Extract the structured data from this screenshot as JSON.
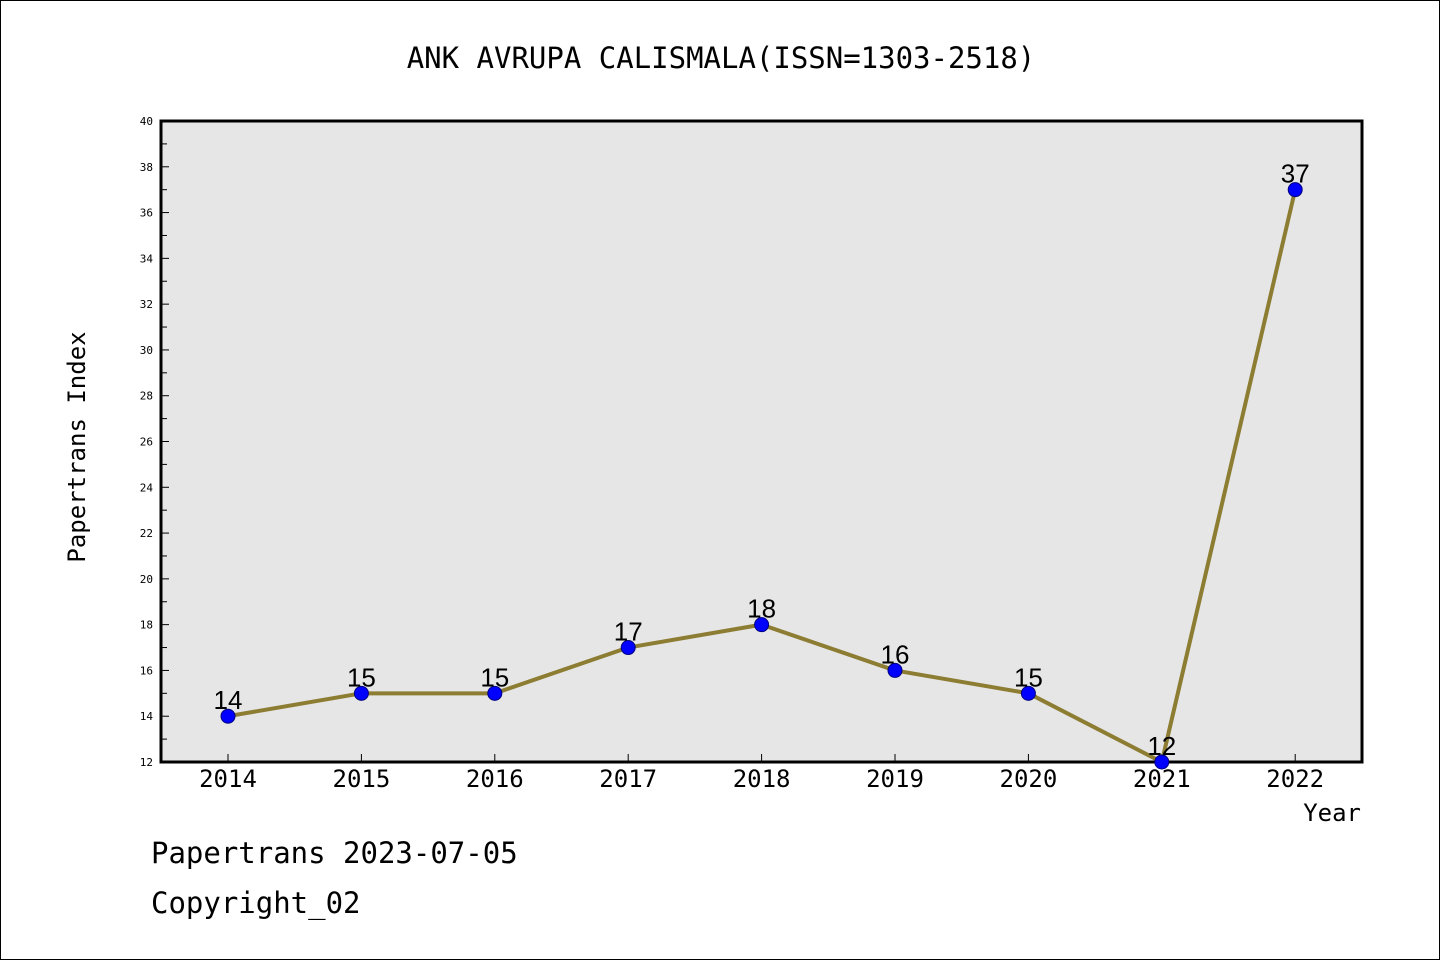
{
  "chart_data": {
    "type": "line",
    "title": "ANK AVRUPA CALISMALA(ISSN=1303-2518)",
    "xlabel": "Year",
    "ylabel": "Papertrans Index",
    "categories": [
      "2014",
      "2015",
      "2016",
      "2017",
      "2018",
      "2019",
      "2020",
      "2021",
      "2022"
    ],
    "series": [
      {
        "values": [
          14,
          15,
          15,
          17,
          18,
          16,
          15,
          12,
          37
        ]
      }
    ],
    "data_labels": [
      "14",
      "15",
      "15",
      "17",
      "18",
      "16",
      "15",
      "12",
      "37"
    ],
    "ylim": [
      12,
      40
    ],
    "yticks": [
      "12",
      "14",
      "16",
      "18",
      "20",
      "22",
      "24",
      "26",
      "28",
      "30",
      "32",
      "34",
      "36",
      "38",
      "40"
    ],
    "grid": false,
    "legend": "none",
    "colors": {
      "line": "#8c7d33",
      "marker_fill": "#0000ff",
      "marker_stroke": "#000080",
      "plot_background": "#e6e6e6"
    }
  },
  "footer": {
    "date_line": "Papertrans 2023-07-05",
    "copyright_line": "Copyright_02"
  }
}
